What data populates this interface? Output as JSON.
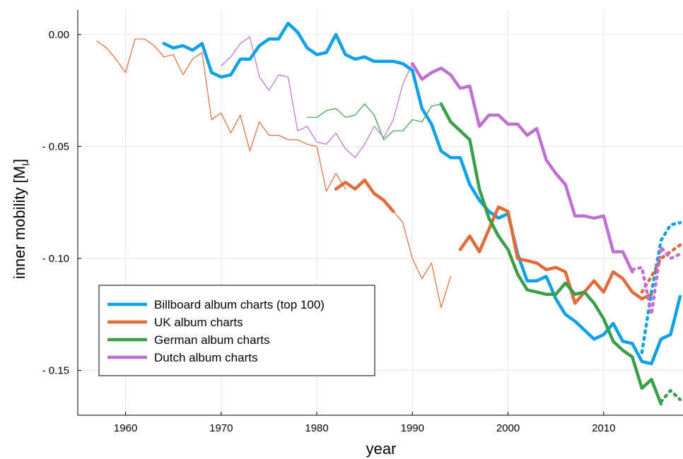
{
  "chart_data": {
    "type": "line",
    "title": "",
    "xlabel": "year",
    "ylabel_main": "inner mobility [M",
    "ylabel_sub": "I",
    "ylabel_end": "]",
    "xlim": [
      1955,
      1968.0
    ],
    "xlim_note": "",
    "x_range": [
      1955.0,
      2018.3
    ],
    "ylim": [
      -0.17,
      0.011
    ],
    "x_ticks": [
      1960,
      1970,
      1980,
      1990,
      2000,
      2010
    ],
    "x_tick_labels": [
      "1960",
      "1970",
      "1980",
      "1990",
      "2000",
      "2010"
    ],
    "y_ticks": [
      0.0,
      -0.05,
      -0.1,
      -0.15
    ],
    "y_tick_labels": [
      "0.00",
      "- 0.05",
      "- 0.10",
      "- 0.15"
    ],
    "grid": true,
    "legend_position": "bottom-left",
    "series": [
      {
        "name": "Billboard album charts (top 100)",
        "color": "#0ea0ea",
        "segments": [
          {
            "style": "thick",
            "points": [
              [
                1964,
                -0.004
              ],
              [
                1965,
                -0.006
              ],
              [
                1966,
                -0.005
              ],
              [
                1967,
                -0.007
              ],
              [
                1968,
                -0.004
              ],
              [
                1969,
                -0.017
              ],
              [
                1970,
                -0.019
              ],
              [
                1971,
                -0.018
              ],
              [
                1972,
                -0.011
              ],
              [
                1973,
                -0.011
              ],
              [
                1974,
                -0.005
              ],
              [
                1975,
                -0.002
              ],
              [
                1976,
                -0.002
              ],
              [
                1977,
                0.005
              ],
              [
                1978,
                0.001
              ],
              [
                1979,
                -0.006
              ],
              [
                1980,
                -0.009
              ],
              [
                1981,
                -0.008
              ],
              [
                1982,
                0.0
              ],
              [
                1983,
                -0.009
              ],
              [
                1984,
                -0.011
              ],
              [
                1985,
                -0.01
              ],
              [
                1986,
                -0.012
              ],
              [
                1987,
                -0.012
              ],
              [
                1988,
                -0.012
              ],
              [
                1989,
                -0.013
              ],
              [
                1990,
                -0.016
              ],
              [
                1991,
                -0.033
              ],
              [
                1992,
                -0.04
              ],
              [
                1993,
                -0.052
              ],
              [
                1994,
                -0.055
              ],
              [
                1995,
                -0.055
              ],
              [
                1996,
                -0.067
              ],
              [
                1997,
                -0.074
              ],
              [
                1998,
                -0.079
              ],
              [
                1999,
                -0.082
              ],
              [
                2000,
                -0.08
              ],
              [
                2001,
                -0.098
              ],
              [
                2002,
                -0.11
              ],
              [
                2003,
                -0.11
              ],
              [
                2004,
                -0.108
              ],
              [
                2005,
                -0.118
              ],
              [
                2006,
                -0.125
              ],
              [
                2007,
                -0.128
              ],
              [
                2008,
                -0.132
              ],
              [
                2009,
                -0.136
              ],
              [
                2010,
                -0.134
              ],
              [
                2011,
                -0.129
              ],
              [
                2012,
                -0.137
              ],
              [
                2013,
                -0.138
              ],
              [
                2014,
                -0.146
              ],
              [
                2015,
                -0.147
              ],
              [
                2016,
                -0.136
              ],
              [
                2017,
                -0.134
              ],
              [
                2018,
                -0.117
              ]
            ]
          },
          {
            "style": "dotted",
            "points": [
              [
                2014,
                -0.142
              ],
              [
                2015,
                -0.115
              ],
              [
                2016,
                -0.092
              ],
              [
                2017,
                -0.085
              ],
              [
                2018,
                -0.084
              ]
            ]
          }
        ]
      },
      {
        "name": "UK album charts",
        "color": "#e26b3a",
        "segments": [
          {
            "style": "thin",
            "points": [
              [
                1957,
                -0.003
              ],
              [
                1958,
                -0.006
              ],
              [
                1959,
                -0.011
              ],
              [
                1960,
                -0.017
              ],
              [
                1961,
                -0.002
              ],
              [
                1962,
                -0.002
              ],
              [
                1963,
                -0.005
              ],
              [
                1964,
                -0.01
              ],
              [
                1965,
                -0.009
              ],
              [
                1966,
                -0.018
              ],
              [
                1967,
                -0.011
              ],
              [
                1968,
                -0.008
              ],
              [
                1969,
                -0.038
              ],
              [
                1970,
                -0.035
              ],
              [
                1971,
                -0.044
              ],
              [
                1972,
                -0.036
              ],
              [
                1973,
                -0.052
              ],
              [
                1974,
                -0.039
              ],
              [
                1975,
                -0.045
              ],
              [
                1976,
                -0.045
              ],
              [
                1977,
                -0.047
              ],
              [
                1978,
                -0.047
              ],
              [
                1979,
                -0.049
              ],
              [
                1980,
                -0.05
              ],
              [
                1981,
                -0.07
              ],
              [
                1982,
                -0.062
              ],
              [
                1983,
                -0.069
              ]
            ]
          },
          {
            "style": "thin",
            "points": [
              [
                1988,
                -0.079
              ],
              [
                1989,
                -0.084
              ],
              [
                1990,
                -0.1
              ],
              [
                1991,
                -0.109
              ],
              [
                1992,
                -0.102
              ],
              [
                1993,
                -0.122
              ],
              [
                1994,
                -0.108
              ]
            ]
          },
          {
            "style": "thick",
            "points": [
              [
                1982,
                -0.069
              ],
              [
                1983,
                -0.066
              ],
              [
                1984,
                -0.069
              ],
              [
                1985,
                -0.065
              ],
              [
                1986,
                -0.071
              ],
              [
                1987,
                -0.074
              ],
              [
                1988,
                -0.079
              ]
            ]
          },
          {
            "style": "thick",
            "points": [
              [
                1995,
                -0.096
              ],
              [
                1996,
                -0.09
              ],
              [
                1997,
                -0.097
              ],
              [
                1998,
                -0.087
              ],
              [
                1999,
                -0.077
              ],
              [
                2000,
                -0.079
              ],
              [
                2001,
                -0.1
              ],
              [
                2002,
                -0.101
              ],
              [
                2003,
                -0.102
              ],
              [
                2004,
                -0.105
              ],
              [
                2005,
                -0.104
              ],
              [
                2006,
                -0.106
              ],
              [
                2007,
                -0.12
              ],
              [
                2008,
                -0.115
              ],
              [
                2009,
                -0.11
              ],
              [
                2010,
                -0.115
              ],
              [
                2011,
                -0.106
              ],
              [
                2012,
                -0.109
              ],
              [
                2013,
                -0.115
              ],
              [
                2014,
                -0.118
              ],
              [
                2015,
                -0.116
              ]
            ]
          },
          {
            "style": "dotted",
            "points": [
              [
                2014,
                -0.115
              ],
              [
                2015,
                -0.108
              ],
              [
                2016,
                -0.1
              ],
              [
                2017,
                -0.097
              ],
              [
                2018,
                -0.094
              ]
            ]
          }
        ]
      },
      {
        "name": "German album charts",
        "color": "#3b9e48",
        "segments": [
          {
            "style": "thin",
            "points": [
              [
                1979,
                -0.037
              ],
              [
                1980,
                -0.037
              ],
              [
                1981,
                -0.034
              ],
              [
                1982,
                -0.033
              ],
              [
                1983,
                -0.037
              ],
              [
                1984,
                -0.036
              ],
              [
                1985,
                -0.031
              ],
              [
                1986,
                -0.036
              ],
              [
                1987,
                -0.047
              ],
              [
                1988,
                -0.043
              ],
              [
                1989,
                -0.043
              ],
              [
                1990,
                -0.038
              ],
              [
                1991,
                -0.039
              ],
              [
                1992,
                -0.032
              ],
              [
                1993,
                -0.031
              ]
            ]
          },
          {
            "style": "thick",
            "points": [
              [
                1993,
                -0.031
              ],
              [
                1994,
                -0.039
              ],
              [
                1995,
                -0.043
              ],
              [
                1996,
                -0.047
              ],
              [
                1997,
                -0.069
              ],
              [
                1998,
                -0.082
              ],
              [
                1999,
                -0.09
              ],
              [
                2000,
                -0.096
              ],
              [
                2001,
                -0.107
              ],
              [
                2002,
                -0.114
              ],
              [
                2003,
                -0.115
              ],
              [
                2004,
                -0.116
              ],
              [
                2005,
                -0.116
              ],
              [
                2006,
                -0.111
              ],
              [
                2007,
                -0.116
              ],
              [
                2008,
                -0.115
              ],
              [
                2009,
                -0.12
              ],
              [
                2010,
                -0.127
              ],
              [
                2011,
                -0.137
              ],
              [
                2012,
                -0.141
              ],
              [
                2013,
                -0.144
              ],
              [
                2014,
                -0.158
              ],
              [
                2015,
                -0.154
              ],
              [
                2016,
                -0.165
              ]
            ]
          },
          {
            "style": "dotted",
            "points": [
              [
                2016,
                -0.164
              ],
              [
                2017,
                -0.159
              ],
              [
                2018,
                -0.163
              ]
            ]
          }
        ]
      },
      {
        "name": "Dutch album charts",
        "color": "#c070d2",
        "segments": [
          {
            "style": "thin",
            "points": [
              [
                1970,
                -0.014
              ],
              [
                1971,
                -0.01
              ],
              [
                1972,
                -0.004
              ],
              [
                1973,
                -0.001
              ],
              [
                1974,
                -0.019
              ],
              [
                1975,
                -0.025
              ],
              [
                1976,
                -0.018
              ],
              [
                1977,
                -0.019
              ],
              [
                1978,
                -0.043
              ],
              [
                1979,
                -0.041
              ],
              [
                1980,
                -0.048
              ],
              [
                1981,
                -0.049
              ],
              [
                1982,
                -0.044
              ],
              [
                1983,
                -0.051
              ],
              [
                1984,
                -0.055
              ],
              [
                1985,
                -0.049
              ],
              [
                1986,
                -0.041
              ],
              [
                1987,
                -0.046
              ],
              [
                1988,
                -0.038
              ],
              [
                1989,
                -0.022
              ],
              [
                1990,
                -0.013
              ]
            ]
          },
          {
            "style": "thick",
            "points": [
              [
                1990,
                -0.013
              ],
              [
                1991,
                -0.02
              ],
              [
                1992,
                -0.017
              ],
              [
                1993,
                -0.015
              ],
              [
                1994,
                -0.018
              ],
              [
                1995,
                -0.024
              ],
              [
                1996,
                -0.023
              ],
              [
                1997,
                -0.041
              ],
              [
                1998,
                -0.036
              ],
              [
                1999,
                -0.036
              ],
              [
                2000,
                -0.04
              ],
              [
                2001,
                -0.04
              ],
              [
                2002,
                -0.045
              ],
              [
                2003,
                -0.042
              ],
              [
                2004,
                -0.056
              ],
              [
                2005,
                -0.062
              ],
              [
                2006,
                -0.067
              ],
              [
                2007,
                -0.081
              ],
              [
                2008,
                -0.081
              ],
              [
                2009,
                -0.082
              ],
              [
                2010,
                -0.081
              ],
              [
                2011,
                -0.097
              ],
              [
                2012,
                -0.097
              ],
              [
                2013,
                -0.106
              ]
            ]
          },
          {
            "style": "dotted",
            "points": [
              [
                2013,
                -0.105
              ],
              [
                2014,
                -0.104
              ],
              [
                2015,
                -0.125
              ],
              [
                2016,
                -0.095
              ],
              [
                2017,
                -0.1
              ],
              [
                2018,
                -0.098
              ]
            ]
          }
        ]
      }
    ]
  }
}
